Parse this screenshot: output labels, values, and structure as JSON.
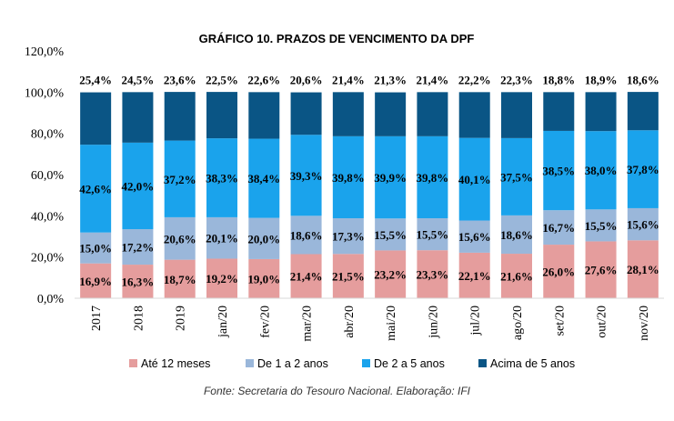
{
  "chart_data": {
    "type": "bar",
    "stacked": true,
    "title": "GRÁFICO 10. PRAZOS DE VENCIMENTO DA DPF",
    "categories": [
      "2017",
      "2018",
      "2019",
      "jan/20",
      "fev/20",
      "mar/20",
      "abr/20",
      "mai/20",
      "jun/20",
      "jul/20",
      "ago/20",
      "set/20",
      "out/20",
      "nov/20"
    ],
    "series": [
      {
        "name": "Até 12 meses",
        "color": "#e59d9d",
        "values": [
          16.9,
          16.3,
          18.7,
          19.2,
          19.0,
          21.4,
          21.5,
          23.2,
          23.3,
          22.1,
          21.6,
          26.0,
          27.6,
          28.1
        ],
        "labels": [
          "16,9%",
          "16,3%",
          "18,7%",
          "19,2%",
          "19,0%",
          "21,4%",
          "21,5%",
          "23,2%",
          "23,3%",
          "22,1%",
          "21,6%",
          "26,0%",
          "27,6%",
          "28,1%"
        ]
      },
      {
        "name": "De 1 a 2 anos",
        "color": "#9ab7da",
        "values": [
          15.0,
          17.2,
          20.6,
          20.1,
          20.0,
          18.6,
          17.3,
          15.5,
          15.5,
          15.6,
          18.6,
          16.7,
          15.5,
          15.6
        ],
        "labels": [
          "15,0%",
          "17,2%",
          "20,6%",
          "20,1%",
          "20,0%",
          "18,6%",
          "17,3%",
          "15,5%",
          "15,5%",
          "15,6%",
          "18,6%",
          "16,7%",
          "15,5%",
          "15,6%"
        ]
      },
      {
        "name": "De 2 a 5 anos",
        "color": "#1aa3ec",
        "values": [
          42.6,
          42.0,
          37.2,
          38.3,
          38.4,
          39.3,
          39.8,
          39.9,
          39.8,
          40.1,
          37.5,
          38.5,
          38.0,
          37.8
        ],
        "labels": [
          "42,6%",
          "42,0%",
          "37,2%",
          "38,3%",
          "38,4%",
          "39,3%",
          "39,8%",
          "39,9%",
          "39,8%",
          "40,1%",
          "37,5%",
          "38,5%",
          "38,0%",
          "37,8%"
        ]
      },
      {
        "name": "Acima de 5 anos",
        "color": "#0a5585",
        "values": [
          25.4,
          24.5,
          23.6,
          22.5,
          22.6,
          20.6,
          21.4,
          21.3,
          21.4,
          22.2,
          22.3,
          18.8,
          18.9,
          18.6
        ],
        "labels": [
          "25,4%",
          "24,5%",
          "23,6%",
          "22,5%",
          "22,6%",
          "20,6%",
          "21,4%",
          "21,3%",
          "21,4%",
          "22,2%",
          "22,3%",
          "18,8%",
          "18,9%",
          "18,6%"
        ]
      }
    ],
    "ylim": [
      0,
      120
    ],
    "yticks": [
      0,
      20,
      40,
      60,
      80,
      100,
      120
    ],
    "ytick_labels": [
      "0,0%",
      "20,0%",
      "40,0%",
      "60,0%",
      "80,0%",
      "100,0%",
      "120,0%"
    ],
    "xlabel": "",
    "ylabel": "",
    "grid": false,
    "legend_position": "bottom",
    "source": "Fonte: Secretaria do Tesouro Nacional. Elaboração: IFI"
  }
}
